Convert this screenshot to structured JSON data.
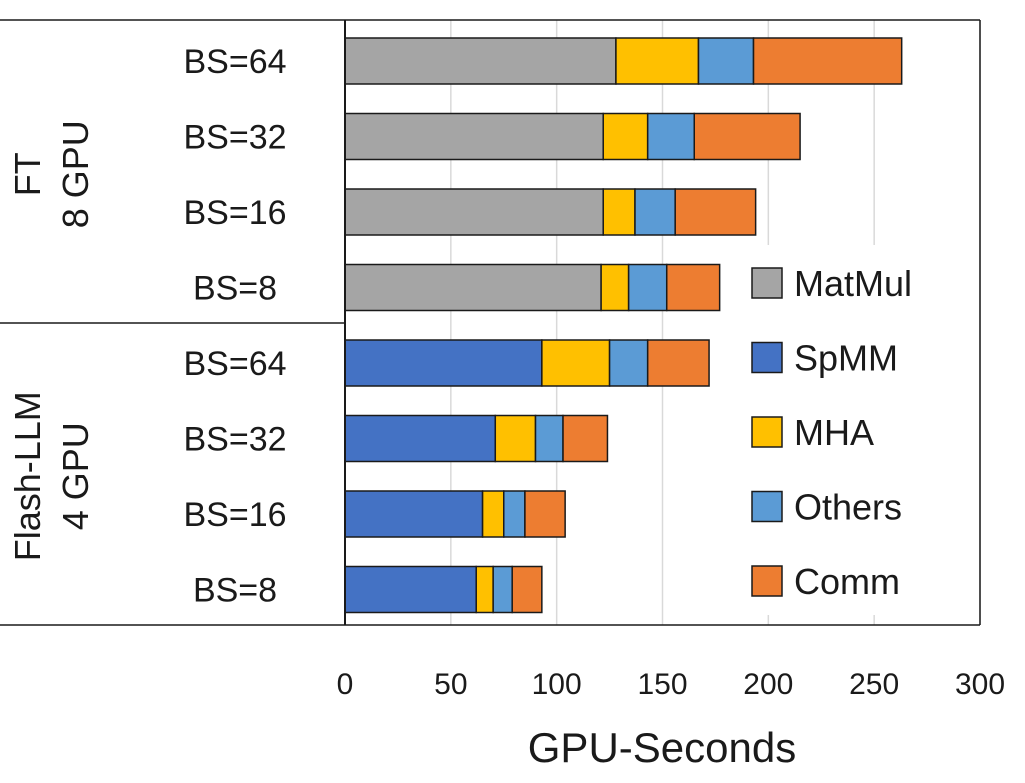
{
  "chart_data": {
    "type": "bar",
    "orientation": "horizontal",
    "stacked": true,
    "xlabel": "GPU-Seconds",
    "ylabel": "",
    "xlim": [
      0,
      300
    ],
    "xticks": [
      0,
      50,
      100,
      150,
      200,
      250,
      300
    ],
    "grid": true,
    "legend_position": "right",
    "groups": [
      {
        "label_lines": [
          "FT",
          "8 GPU"
        ],
        "categories": [
          "BS=64",
          "BS=32",
          "BS=16",
          "BS=8"
        ]
      },
      {
        "label_lines": [
          "Flash-LLM",
          "4 GPU"
        ],
        "categories": [
          "BS=64",
          "BS=32",
          "BS=16",
          "BS=8"
        ]
      }
    ],
    "series": [
      {
        "name": "MatMul",
        "color": "#a5a5a5",
        "values": [
          128,
          122,
          122,
          121,
          0,
          0,
          0,
          0
        ]
      },
      {
        "name": "SpMM",
        "color": "#4472c4",
        "values": [
          0,
          0,
          0,
          0,
          93,
          71,
          65,
          62
        ]
      },
      {
        "name": "MHA",
        "color": "#ffc000",
        "values": [
          39,
          21,
          15,
          13,
          32,
          19,
          10,
          8
        ]
      },
      {
        "name": "Others",
        "color": "#5b9bd5",
        "values": [
          26,
          22,
          19,
          18,
          18,
          13,
          10,
          9
        ]
      },
      {
        "name": "Comm",
        "color": "#ed7d31",
        "values": [
          70,
          50,
          38,
          25,
          29,
          21,
          19,
          14
        ]
      }
    ]
  }
}
